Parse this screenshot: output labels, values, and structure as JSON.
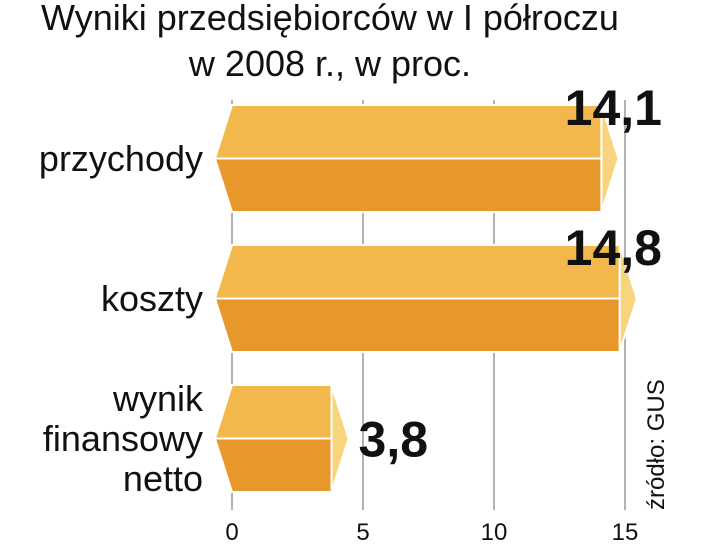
{
  "chart_data": {
    "type": "bar",
    "orientation": "horizontal",
    "title": "Wyniki przedsiębiorców w I półroczu",
    "subtitle": "w 2008 r., w proc.",
    "categories": [
      "przychody",
      "koszty",
      "wynik finansowy netto"
    ],
    "values": [
      14.1,
      14.8,
      3.8
    ],
    "value_labels": [
      "14,1",
      "14,8",
      "3,8"
    ],
    "color": "#f2b84b",
    "xlim": [
      0,
      15
    ],
    "xticks": [
      0,
      5,
      10,
      15
    ],
    "grid": true,
    "source": "źródło: GUS"
  }
}
